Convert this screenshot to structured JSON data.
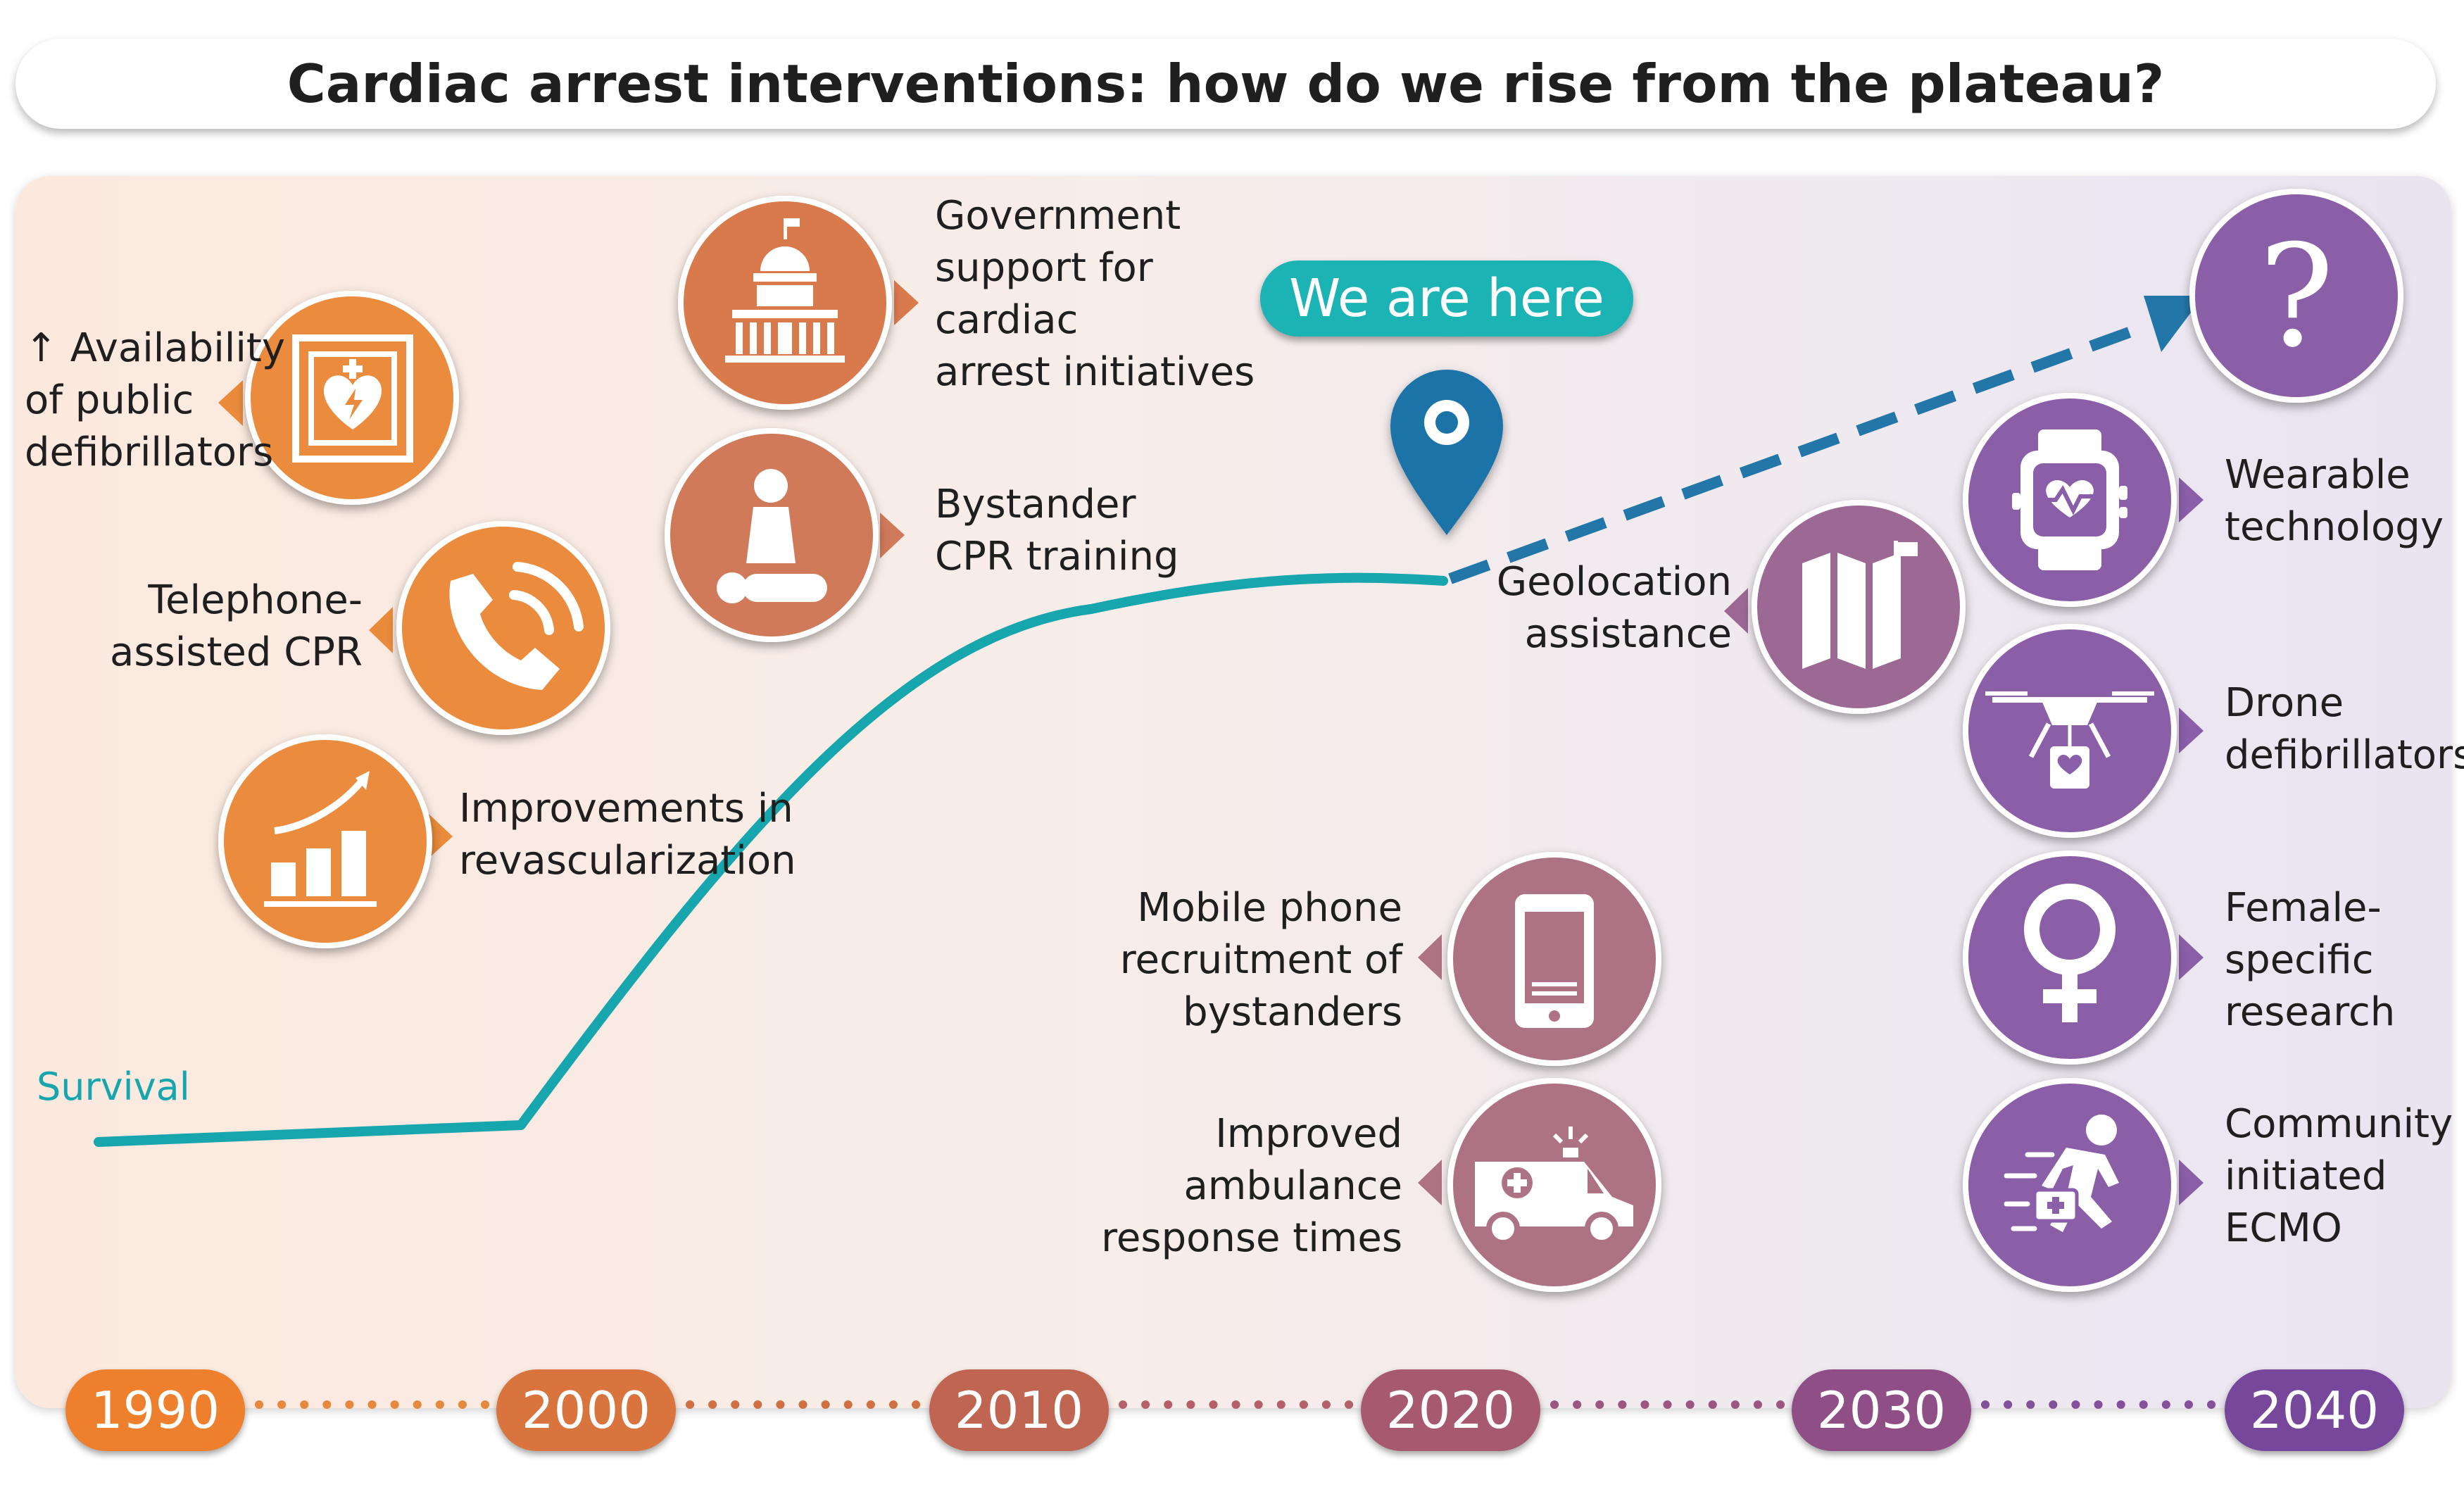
{
  "title": "Cardiac arrest interventions: how do we rise from the plateau?",
  "survival_label": "Survival",
  "we_are_here": "We are here",
  "question_mark": "?",
  "interventions": {
    "public_defibrillators": {
      "arrow": "↑",
      "lines": [
        "Availability",
        "of public",
        "defibrillators"
      ],
      "icon": "aed-icon"
    },
    "telephone_cpr": {
      "lines": [
        "Telephone-",
        "assisted CPR"
      ],
      "icon": "phone-icon"
    },
    "revascularization": {
      "lines": [
        "Improvements in",
        "revascularization"
      ],
      "icon": "growth-chart-icon"
    },
    "government_support": {
      "lines": [
        "Government",
        "support for",
        "cardiac",
        "arrest initiatives"
      ],
      "icon": "capitol-building-icon"
    },
    "bystander_cpr": {
      "lines": [
        "Bystander",
        "CPR training"
      ],
      "icon": "cpr-training-icon"
    },
    "mobile_phone": {
      "lines": [
        "Mobile phone",
        "recruitment of",
        "bystanders"
      ],
      "icon": "smartphone-icon"
    },
    "ambulance": {
      "lines": [
        "Improved",
        "ambulance",
        "response times"
      ],
      "icon": "ambulance-icon"
    },
    "geolocation": {
      "lines": [
        "Geolocation",
        "assistance"
      ],
      "icon": "map-icon"
    },
    "wearable": {
      "lines": [
        "Wearable",
        "technology"
      ],
      "icon": "smartwatch-icon"
    },
    "drone": {
      "lines": [
        "Drone",
        "defibrillators"
      ],
      "icon": "drone-icon"
    },
    "female": {
      "lines": [
        "Female-",
        "specific",
        "research"
      ],
      "icon": "female-symbol-icon"
    },
    "ecmo": {
      "lines": [
        "Community",
        "initiated",
        "ECMO"
      ],
      "icon": "runner-medkit-icon"
    }
  },
  "timeline": [
    "1990",
    "2000",
    "2010",
    "2020",
    "2030",
    "2040"
  ],
  "colors": {
    "orange": "#ea8b3c",
    "orange_dark": "#d97a3d",
    "mauve": "#ad7385",
    "purple": "#8a5ea8",
    "survival_line": "#17a6ad",
    "projection_line": "#2377a8",
    "pin": "#1f73a8",
    "year_pills": [
      "#ee7f2d",
      "#d9743e",
      "#bf6552",
      "#a75a6f",
      "#8f4f86",
      "#77479b"
    ]
  }
}
